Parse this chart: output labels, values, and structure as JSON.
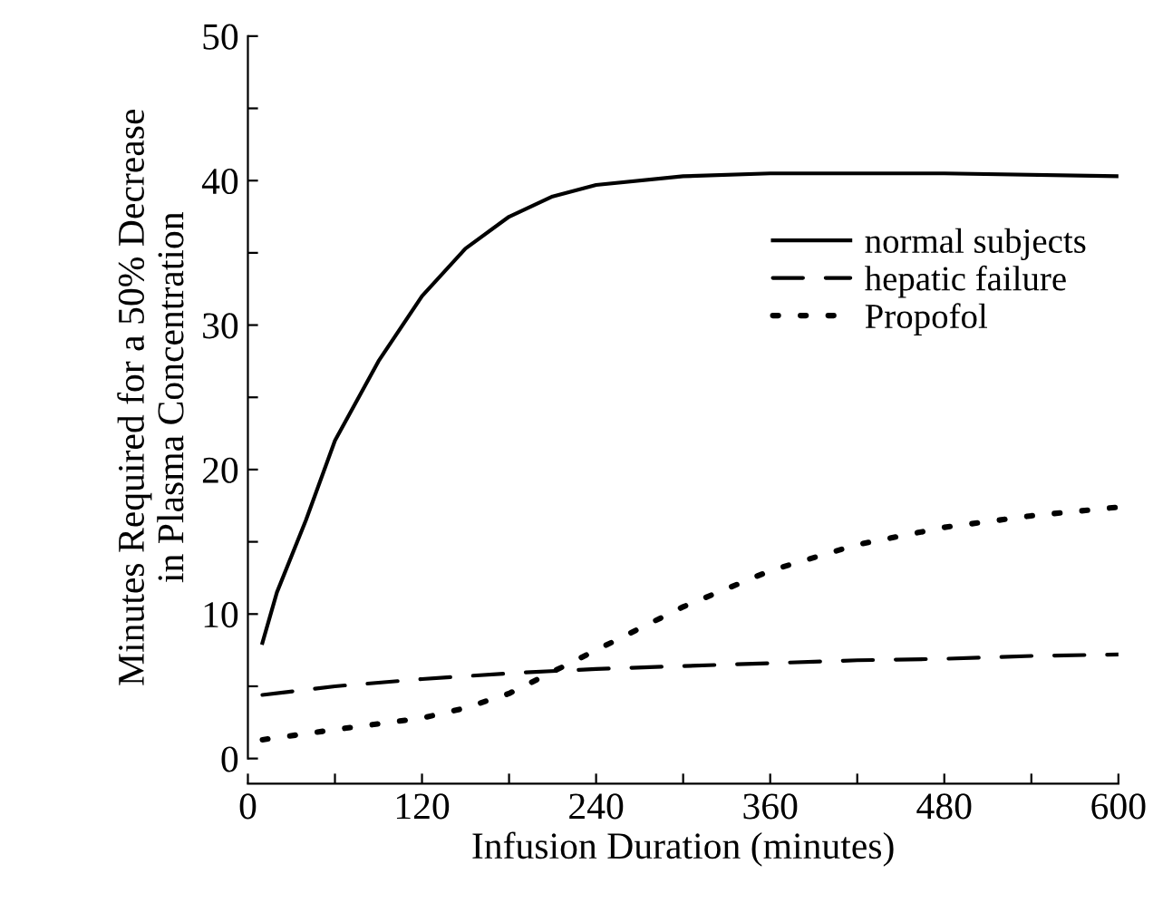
{
  "chart_data": {
    "type": "line",
    "xlabel": "Infusion Duration (minutes)",
    "ylabel": "Minutes Required for a 50% Decrease\nin Plasma Concentration",
    "xlim": [
      0,
      600
    ],
    "ylim": [
      0,
      50
    ],
    "xticks": [
      0,
      {
        "value": 60,
        "label": null
      },
      120,
      {
        "value": 180,
        "label": null
      },
      240,
      {
        "value": 300,
        "label": null
      },
      360,
      {
        "value": 420,
        "label": null
      },
      480,
      {
        "value": 540,
        "label": null
      },
      600
    ],
    "yticks": [
      0,
      {
        "value": 5,
        "label": null
      },
      10,
      {
        "value": 15,
        "label": null
      },
      20,
      {
        "value": 25,
        "label": null
      },
      30,
      {
        "value": 35,
        "label": null
      },
      40,
      {
        "value": 45,
        "label": null
      },
      50
    ],
    "grid": false,
    "legend": "right",
    "marker": "none",
    "series": [
      {
        "name": "normal subjects",
        "color": "#000000",
        "line_style": "solid",
        "x": [
          10,
          20,
          40,
          60,
          90,
          120,
          150,
          180,
          210,
          240,
          300,
          360,
          480,
          600
        ],
        "values": [
          8,
          11.5,
          16.5,
          22,
          27.5,
          32,
          35.3,
          37.5,
          38.9,
          39.7,
          40.3,
          40.5,
          40.5,
          40.3
        ]
      },
      {
        "name": "hepatic failure",
        "color": "#000000",
        "line_style": "dashed",
        "x": [
          10,
          60,
          120,
          180,
          240,
          300,
          360,
          420,
          480,
          540,
          600
        ],
        "values": [
          4.4,
          5.0,
          5.5,
          5.9,
          6.2,
          6.4,
          6.6,
          6.8,
          6.9,
          7.1,
          7.2
        ]
      },
      {
        "name": "Propofol",
        "color": "#000000",
        "line_style": "dotted",
        "x": [
          10,
          60,
          120,
          150,
          180,
          210,
          240,
          270,
          300,
          360,
          420,
          480,
          540,
          600
        ],
        "values": [
          1.3,
          2.0,
          2.8,
          3.5,
          4.5,
          6,
          7.5,
          9,
          10.5,
          13,
          14.8,
          16,
          16.8,
          17.4
        ]
      }
    ]
  }
}
